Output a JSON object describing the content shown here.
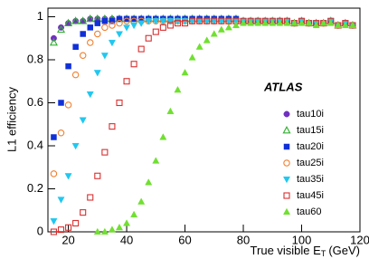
{
  "chart_data": {
    "type": "scatter",
    "y_label": "L1 efficiency",
    "x_label": {
      "main": "True visible E",
      "subscript": "T",
      "unit": "(GeV)"
    },
    "annotation": "ATLAS",
    "xlim": [
      13,
      120
    ],
    "ylim": [
      0,
      1.04
    ],
    "xticks": [
      20,
      40,
      60,
      80,
      100,
      120
    ],
    "yticks": [
      0,
      0.2,
      0.4,
      0.6,
      0.8,
      1
    ],
    "legend": "right",
    "x": [
      15,
      17.5,
      20,
      22.5,
      25,
      27.5,
      30,
      32.5,
      35,
      37.5,
      40,
      42.5,
      45,
      47.5,
      50,
      52.5,
      55,
      57.5,
      60,
      62.5,
      65,
      67.5,
      70,
      72.5,
      75,
      77.5,
      80,
      82.5,
      85,
      87.5,
      90,
      92.5,
      95,
      97.5,
      100,
      102.5,
      105,
      107.5,
      110,
      112.5,
      115,
      117.5
    ],
    "series": [
      {
        "name": "tau10i",
        "color": "#7030c0",
        "marker": "circle",
        "filled": true,
        "values": [
          0.9,
          0.95,
          0.97,
          0.98,
          0.98,
          0.99,
          0.99,
          0.99,
          0.99,
          0.99,
          0.99,
          0.99,
          0.99,
          0.99,
          0.99,
          0.99,
          0.99,
          0.99,
          0.99,
          0.99,
          0.99,
          0.99,
          0.99,
          0.99,
          0.99,
          0.99,
          0.98,
          0.98,
          0.98,
          0.98,
          0.98,
          0.98,
          0.98,
          0.97,
          0.98,
          0.97,
          0.97,
          0.97,
          0.98,
          0.96,
          0.97,
          0.96
        ]
      },
      {
        "name": "tau15i",
        "color": "#30b030",
        "marker": "triangle",
        "filled": false,
        "values": [
          0.88,
          0.94,
          0.97,
          0.98,
          0.98,
          0.99,
          0.99,
          0.99,
          0.99,
          0.99,
          0.99,
          0.99,
          0.99,
          0.99,
          0.99,
          0.99,
          0.99,
          0.99,
          0.99,
          0.99,
          0.99,
          0.99,
          0.99,
          0.99,
          0.99,
          0.99,
          0.98,
          0.98,
          0.98,
          0.98,
          0.98,
          0.98,
          0.98,
          0.97,
          0.98,
          0.97,
          0.97,
          0.97,
          0.98,
          0.96,
          0.97,
          0.96
        ]
      },
      {
        "name": "tau20i",
        "color": "#1030d8",
        "marker": "square",
        "filled": true,
        "values": [
          0.44,
          0.6,
          0.77,
          0.86,
          0.92,
          0.95,
          0.97,
          0.98,
          0.98,
          0.99,
          0.99,
          0.99,
          0.99,
          0.99,
          0.99,
          0.99,
          0.99,
          0.99,
          0.99,
          0.99,
          0.99,
          0.99,
          0.99,
          0.99,
          0.99,
          0.99,
          0.98,
          0.98,
          0.98,
          0.98,
          0.98,
          0.98,
          0.98,
          0.97,
          0.98,
          0.97,
          0.97,
          0.97,
          0.98,
          0.96,
          0.97,
          0.96
        ]
      },
      {
        "name": "tau25i",
        "color": "#f08030",
        "marker": "circle",
        "filled": false,
        "values": [
          0.27,
          0.46,
          0.59,
          0.73,
          0.82,
          0.88,
          0.92,
          0.95,
          0.96,
          0.97,
          0.98,
          0.98,
          0.98,
          0.98,
          0.98,
          0.98,
          0.98,
          0.98,
          0.98,
          0.98,
          0.98,
          0.98,
          0.98,
          0.98,
          0.98,
          0.98,
          0.98,
          0.98,
          0.98,
          0.98,
          0.98,
          0.98,
          0.98,
          0.97,
          0.98,
          0.97,
          0.97,
          0.97,
          0.98,
          0.96,
          0.97,
          0.96
        ]
      },
      {
        "name": "tau35i",
        "color": "#20c8f0",
        "marker": "triangle-down",
        "filled": true,
        "values": [
          0.05,
          0.15,
          0.26,
          0.4,
          0.52,
          0.64,
          0.74,
          0.82,
          0.88,
          0.92,
          0.95,
          0.96,
          0.97,
          0.98,
          0.98,
          0.98,
          0.98,
          0.98,
          0.98,
          0.98,
          0.98,
          0.98,
          0.98,
          0.98,
          0.98,
          0.98,
          0.98,
          0.98,
          0.98,
          0.98,
          0.98,
          0.98,
          0.98,
          0.97,
          0.98,
          0.97,
          0.97,
          0.97,
          0.98,
          0.96,
          0.97,
          0.96
        ]
      },
      {
        "name": "tau45i",
        "color": "#d83030",
        "marker": "square",
        "filled": false,
        "values": [
          0.0,
          0.01,
          0.02,
          0.04,
          0.09,
          0.16,
          0.26,
          0.37,
          0.49,
          0.6,
          0.7,
          0.78,
          0.85,
          0.9,
          0.93,
          0.95,
          0.96,
          0.97,
          0.97,
          0.98,
          0.98,
          0.98,
          0.98,
          0.98,
          0.98,
          0.98,
          0.98,
          0.98,
          0.98,
          0.98,
          0.98,
          0.98,
          0.98,
          0.97,
          0.98,
          0.97,
          0.97,
          0.97,
          0.98,
          0.96,
          0.97,
          0.96
        ]
      },
      {
        "name": "tau60",
        "color": "#70e030",
        "marker": "triangle",
        "filled": true,
        "values": [
          null,
          null,
          null,
          null,
          null,
          null,
          0.0,
          0.0,
          0.01,
          0.02,
          0.04,
          0.08,
          0.14,
          0.23,
          0.33,
          0.44,
          0.56,
          0.66,
          0.74,
          0.81,
          0.86,
          0.89,
          0.92,
          0.94,
          0.95,
          0.96,
          0.97,
          0.97,
          0.97,
          0.97,
          0.97,
          0.97,
          0.97,
          0.97,
          0.97,
          0.97,
          0.96,
          0.97,
          0.97,
          0.96,
          0.96,
          0.96
        ]
      }
    ]
  }
}
